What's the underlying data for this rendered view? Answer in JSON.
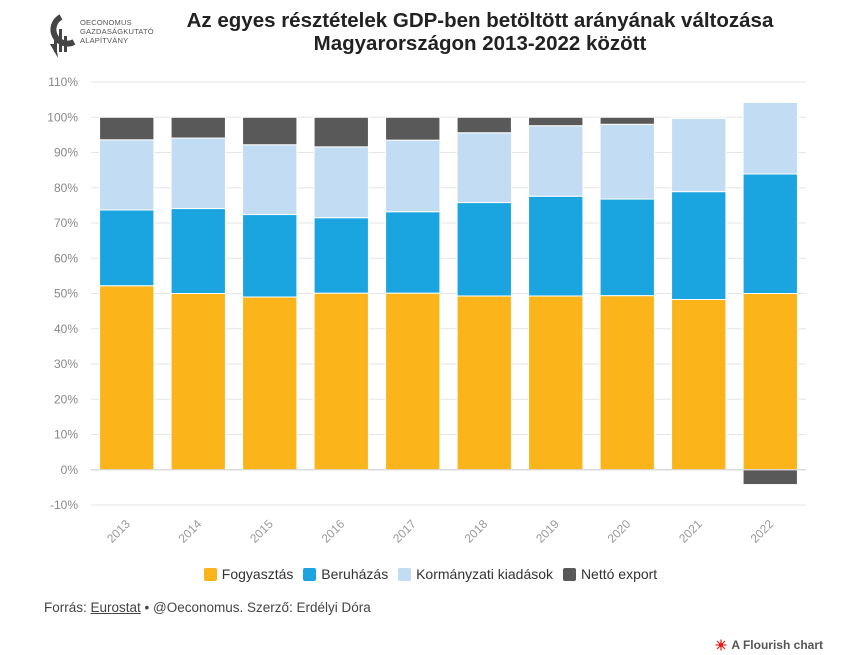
{
  "logo": {
    "lines": [
      "OECONOMUS",
      "GAZDASÁGKUTATÓ",
      "ALAPÍTVÁNY"
    ]
  },
  "title": {
    "line1": "Az egyes résztételek GDP-ben betöltött arányának változása",
    "line2": "Magyarországon 2013-2022 között"
  },
  "legend": [
    {
      "label": "Fogyasztás",
      "color": "#fbb41a"
    },
    {
      "label": "Beruházás",
      "color": "#1aa4e0"
    },
    {
      "label": "Kormányzati kiadások",
      "color": "#c2dcf4"
    },
    {
      "label": "Nettó export",
      "color": "#595959"
    }
  ],
  "source": {
    "prefix": "Forrás: ",
    "link": "Eurostat",
    "suffix": " • @Oeconomus. Szerző: Erdélyi Dóra"
  },
  "credit": "A Flourish chart",
  "chart_data": {
    "type": "bar",
    "stacked": true,
    "title": "Az egyes résztételek GDP-ben betöltött arányának változása Magyarországon 2013-2022 között",
    "categories": [
      "2013",
      "2014",
      "2015",
      "2016",
      "2017",
      "2018",
      "2019",
      "2020",
      "2021",
      "2022"
    ],
    "ylim": [
      -10,
      110
    ],
    "yticks": [
      -10,
      0,
      10,
      20,
      30,
      40,
      50,
      60,
      70,
      80,
      90,
      100,
      110
    ],
    "ytick_labels": [
      "-10%",
      "0%",
      "10%",
      "20%",
      "30%",
      "40%",
      "50%",
      "60%",
      "70%",
      "80%",
      "90%",
      "100%",
      "110%"
    ],
    "grid": true,
    "series": [
      {
        "name": "Fogyasztás",
        "color": "#fbb41a",
        "values": [
          52.2,
          50.0,
          49.0,
          50.1,
          50.1,
          49.3,
          49.3,
          49.4,
          48.3,
          50.0
        ]
      },
      {
        "name": "Beruházás",
        "color": "#1aa4e0",
        "values": [
          21.5,
          24.1,
          23.4,
          21.4,
          23.1,
          26.5,
          28.3,
          27.4,
          30.6,
          33.9
        ]
      },
      {
        "name": "Kormányzati kiadások",
        "color": "#c2dcf4",
        "values": [
          19.9,
          20.0,
          19.8,
          20.1,
          20.3,
          19.8,
          20.0,
          21.2,
          20.8,
          20.3
        ]
      },
      {
        "name": "Nettó export",
        "color": "#595959",
        "values": [
          6.4,
          5.9,
          7.8,
          8.4,
          6.5,
          4.4,
          2.4,
          2.0,
          0.3,
          -4.2
        ]
      }
    ]
  }
}
